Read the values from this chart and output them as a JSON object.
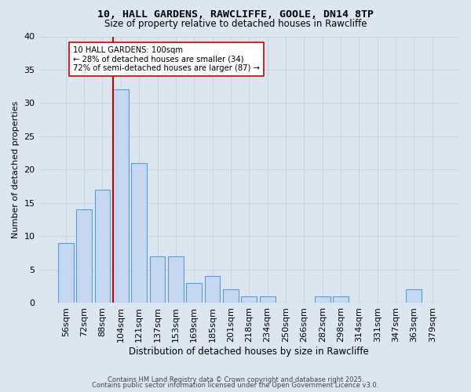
{
  "title1": "10, HALL GARDENS, RAWCLIFFE, GOOLE, DN14 8TP",
  "title2": "Size of property relative to detached houses in Rawcliffe",
  "xlabel": "Distribution of detached houses by size in Rawcliffe",
  "ylabel": "Number of detached properties",
  "categories": [
    "56sqm",
    "72sqm",
    "88sqm",
    "104sqm",
    "121sqm",
    "137sqm",
    "153sqm",
    "169sqm",
    "185sqm",
    "201sqm",
    "218sqm",
    "234sqm",
    "250sqm",
    "266sqm",
    "282sqm",
    "298sqm",
    "314sqm",
    "331sqm",
    "347sqm",
    "363sqm",
    "379sqm"
  ],
  "values": [
    9,
    14,
    17,
    32,
    21,
    7,
    7,
    3,
    4,
    2,
    1,
    1,
    0,
    0,
    1,
    1,
    0,
    0,
    0,
    2,
    0
  ],
  "bar_color": "#c5d8f0",
  "bar_edge_color": "#5b9bd5",
  "vline_color": "#cc0000",
  "annotation_text": "10 HALL GARDENS: 100sqm\n← 28% of detached houses are smaller (34)\n72% of semi-detached houses are larger (87) →",
  "annotation_box_color": "white",
  "annotation_box_edge": "#cc0000",
  "ylim": [
    0,
    40
  ],
  "yticks": [
    0,
    5,
    10,
    15,
    20,
    25,
    30,
    35,
    40
  ],
  "grid_color": "#c8d4e3",
  "background_color": "#dce6f1",
  "footer1": "Contains HM Land Registry data © Crown copyright and database right 2025.",
  "footer2": "Contains public sector information licensed under the Open Government Licence v3.0."
}
